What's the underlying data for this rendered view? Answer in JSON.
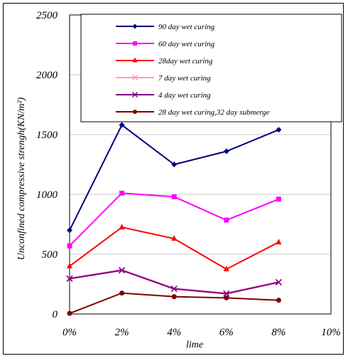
{
  "chart_data": {
    "type": "line",
    "xlabel": "lime",
    "ylabel": "Unconfined compressive strengh(KN/m²)",
    "x_ticks": [
      "0%",
      "2%",
      "4%",
      "6%",
      "8%",
      "10%"
    ],
    "x": [
      0,
      2,
      4,
      6,
      8
    ],
    "xlim": [
      0,
      10
    ],
    "ylim": [
      0,
      2500
    ],
    "y_ticks": [
      "0",
      "500",
      "1000",
      "1500",
      "2000",
      "2500"
    ],
    "grid": "horizontal",
    "legend_position": "top-right",
    "series": [
      {
        "name": "90 day wet curing",
        "color": "#000080",
        "marker": "diamond",
        "values": [
          700,
          1580,
          1250,
          1360,
          1540
        ]
      },
      {
        "name": "60 day wet curing",
        "color": "#ff00ff",
        "marker": "square",
        "values": [
          570,
          1010,
          980,
          785,
          960
        ]
      },
      {
        "name": "28day wet curing",
        "color": "#ff0000",
        "marker": "triangle",
        "values": [
          400,
          725,
          630,
          375,
          600
        ]
      },
      {
        "name": "7 day wet curing",
        "color": "#ff99cc",
        "marker": "x",
        "values": [
          300,
          370,
          215,
          175,
          270
        ]
      },
      {
        "name": "4 day wet curing",
        "color": "#800080",
        "marker": "x",
        "values": [
          295,
          365,
          210,
          170,
          265
        ]
      },
      {
        "name": "28 day wet curing,32 day submerge",
        "color": "#800000",
        "marker": "circle",
        "values": [
          5,
          175,
          145,
          135,
          115
        ]
      }
    ]
  }
}
